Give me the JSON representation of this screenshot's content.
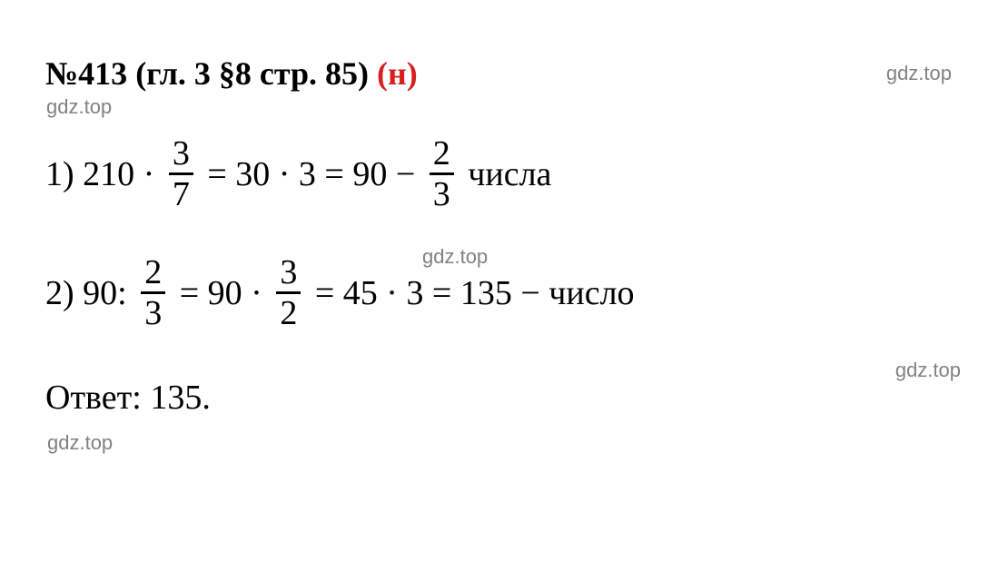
{
  "header": {
    "problem_number": "№413",
    "chapter_ref": " (гл. 3 §8 стр. 85) ",
    "variant": "(н)"
  },
  "watermarks": {
    "text": "gdz.top"
  },
  "equations": {
    "line1": {
      "prefix": "1) 210 · ",
      "frac1": {
        "num": "3",
        "den": "7"
      },
      "mid1": " = 30 · 3 = 90 − ",
      "frac2": {
        "num": "2",
        "den": "3"
      },
      "suffix": " числа"
    },
    "line2": {
      "prefix": "2) 90: ",
      "frac1": {
        "num": "2",
        "den": "3"
      },
      "mid1": " = 90 · ",
      "frac2": {
        "num": "3",
        "den": "2"
      },
      "suffix": " = 45 · 3 = 135 − число"
    }
  },
  "answer": {
    "label": "Ответ: ",
    "value": "135."
  },
  "styling": {
    "background_color": "#ffffff",
    "text_color": "#000000",
    "accent_color": "#d81e1e",
    "watermark_color": "#828282",
    "header_fontsize": 36,
    "equation_fontsize": 38,
    "watermark_fontsize": 22,
    "font_family": "Georgia, Times New Roman, serif",
    "fraction_line_width": 3
  }
}
